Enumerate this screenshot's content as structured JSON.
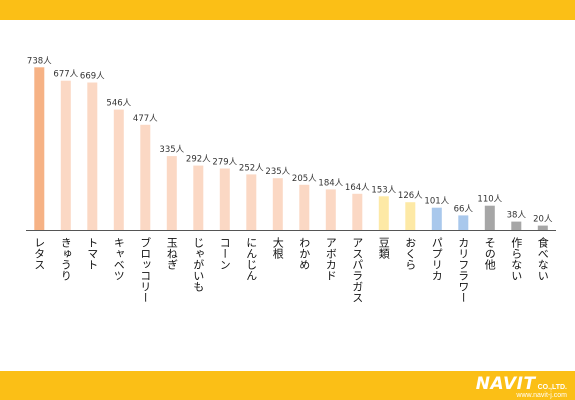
{
  "chart_data": {
    "type": "bar",
    "title": "",
    "xlabel": "",
    "ylabel": "",
    "ylim": [
      0,
      800
    ],
    "grid": false,
    "legend": "none",
    "unit_suffix": "人",
    "categories": [
      "レタス",
      "きゅうり",
      "トマト",
      "キャベツ",
      "ブロッコリー",
      "玉ねぎ",
      "じゃがいも",
      "コーン",
      "にんじん",
      "大根",
      "わかめ",
      "アボカド",
      "アスパラガス",
      "豆類",
      "おくら",
      "パプリカ",
      "カリフラワー",
      "その他",
      "作らない",
      "食べない"
    ],
    "values": [
      738,
      677,
      669,
      546,
      477,
      335,
      292,
      279,
      252,
      235,
      205,
      184,
      164,
      153,
      126,
      101,
      66,
      110,
      38,
      20
    ],
    "value_labels": [
      "738人",
      "677人",
      "669人",
      "546人",
      "477人",
      "335人",
      "292人",
      "279人",
      "252人",
      "235人",
      "205人",
      "184人",
      "164人",
      "153人",
      "126人",
      "101人",
      "66人",
      "110人",
      "38人",
      "20人"
    ],
    "bar_colors": [
      "#f6b285",
      "#fbd8c4",
      "#fbd8c4",
      "#fbd8c4",
      "#fbd8c4",
      "#fbd8c4",
      "#fbd8c4",
      "#fbd8c4",
      "#fbd8c4",
      "#fbd8c4",
      "#fbd8c4",
      "#fbd8c4",
      "#fbd8c4",
      "#fde9a6",
      "#fde9a6",
      "#a9c8ec",
      "#a9c8ec",
      "#a6a6a6",
      "#a6a6a6",
      "#a6a6a6"
    ]
  },
  "footer": {
    "brand": "NAVIT",
    "brand_suffix": "CO.,LTD.",
    "url": "www.navit-j.com"
  },
  "colors": {
    "band": "#fbbf16",
    "axis": "#555555"
  }
}
